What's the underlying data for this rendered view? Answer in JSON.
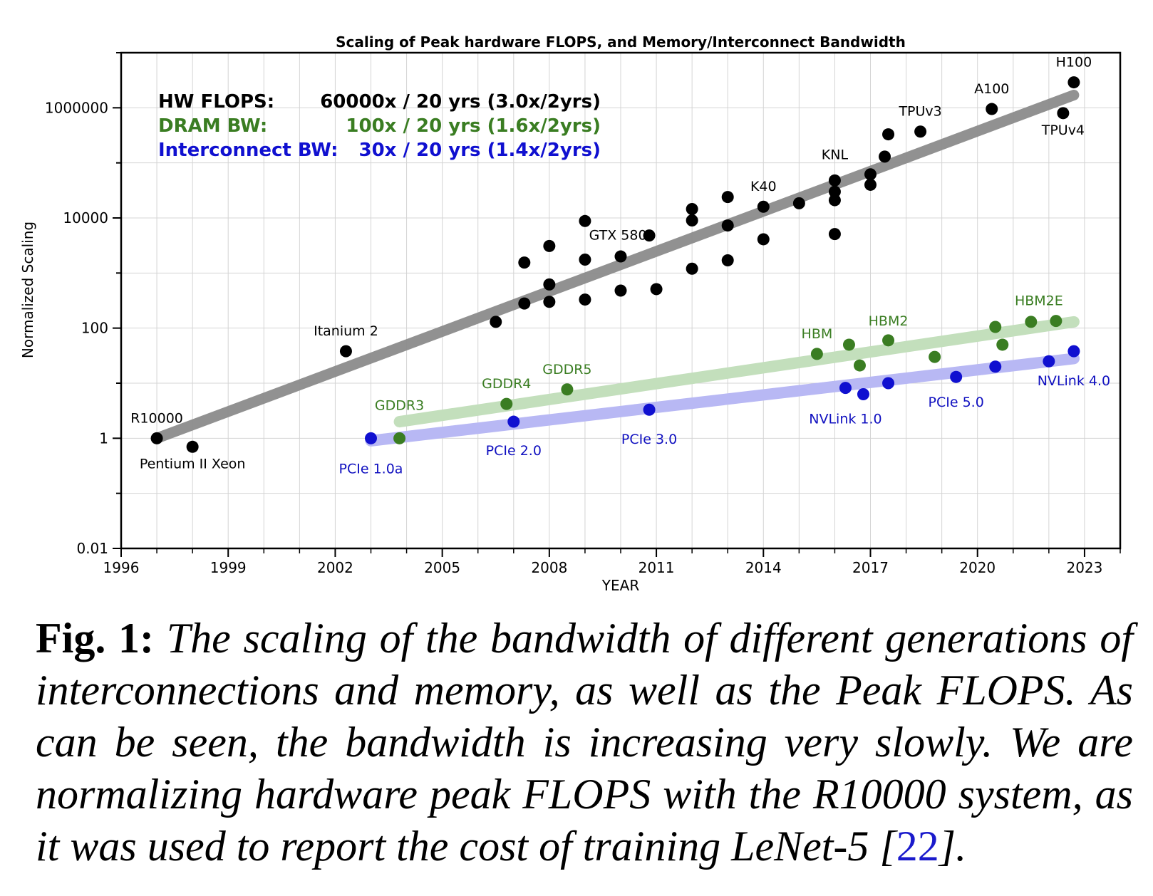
{
  "chart_data": {
    "type": "scatter",
    "title": "Scaling of Peak hardware FLOPS, and Memory/Interconnect Bandwidth",
    "xlabel": "YEAR",
    "ylabel": "Normalized Scaling",
    "yscale": "log",
    "xlim": [
      1996,
      2024
    ],
    "ylim": [
      0.01,
      10000000
    ],
    "xticks": [
      1996,
      1999,
      2002,
      2005,
      2008,
      2011,
      2014,
      2017,
      2020,
      2023
    ],
    "xtick_labels": [
      "1996",
      "1999",
      "2002",
      "2005",
      "2008",
      "2011",
      "2014",
      "2017",
      "2020",
      "2023"
    ],
    "yticks": [
      0.01,
      1,
      100,
      10000,
      1000000
    ],
    "ytick_labels": [
      "0.01",
      "1",
      "100",
      "10000",
      "1000000"
    ],
    "grid": true,
    "legend": {
      "position": "top-left",
      "entries": [
        {
          "name": "HW FLOPS:",
          "rate": "60000x / 20 yrs (3.0x/2yrs)",
          "color": "#000000"
        },
        {
          "name": "DRAM BW:",
          "rate": "100x / 20 yrs (1.6x/2yrs)",
          "color": "#3a7d22"
        },
        {
          "name": "Interconnect BW:",
          "rate": "30x / 20 yrs (1.4x/2yrs)",
          "color": "#1010d0"
        }
      ]
    },
    "series": [
      {
        "name": "HW FLOPS",
        "color": "#000000",
        "trend_color": "#8c8c8c",
        "trend": {
          "x": [
            1997,
            2022.7
          ],
          "y": [
            1.0,
            1700000
          ]
        },
        "points": [
          {
            "x": 1997.0,
            "y": 1.0,
            "label": "R10000"
          },
          {
            "x": 1998.0,
            "y": 0.7,
            "label": "Pentium II Xeon"
          },
          {
            "x": 2002.3,
            "y": 38,
            "label": "Itanium 2"
          },
          {
            "x": 2006.5,
            "y": 130,
            "label": ""
          },
          {
            "x": 2007.3,
            "y": 1550,
            "label": ""
          },
          {
            "x": 2007.3,
            "y": 280,
            "label": ""
          },
          {
            "x": 2008.0,
            "y": 3100,
            "label": ""
          },
          {
            "x": 2008.0,
            "y": 620,
            "label": ""
          },
          {
            "x": 2008.0,
            "y": 300,
            "label": ""
          },
          {
            "x": 2009.0,
            "y": 8800,
            "label": ""
          },
          {
            "x": 2009.0,
            "y": 1750,
            "label": ""
          },
          {
            "x": 2009.0,
            "y": 330,
            "label": ""
          },
          {
            "x": 2010.0,
            "y": 2000,
            "label": ""
          },
          {
            "x": 2010.0,
            "y": 480,
            "label": ""
          },
          {
            "x": 2010.8,
            "y": 4800,
            "label": "GTX 580"
          },
          {
            "x": 2011.0,
            "y": 510,
            "label": ""
          },
          {
            "x": 2012.0,
            "y": 14500,
            "label": ""
          },
          {
            "x": 2012.0,
            "y": 9000,
            "label": ""
          },
          {
            "x": 2012.0,
            "y": 1200,
            "label": ""
          },
          {
            "x": 2013.0,
            "y": 24000,
            "label": ""
          },
          {
            "x": 2013.0,
            "y": 7300,
            "label": ""
          },
          {
            "x": 2013.0,
            "y": 1700,
            "label": ""
          },
          {
            "x": 2014.0,
            "y": 16000,
            "label": "K40"
          },
          {
            "x": 2014.0,
            "y": 4100,
            "label": ""
          },
          {
            "x": 2015.0,
            "y": 18500,
            "label": ""
          },
          {
            "x": 2016.0,
            "y": 48000,
            "label": "KNL"
          },
          {
            "x": 2016.0,
            "y": 30000,
            "label": ""
          },
          {
            "x": 2016.0,
            "y": 21000,
            "label": ""
          },
          {
            "x": 2016.0,
            "y": 5100,
            "label": ""
          },
          {
            "x": 2017.0,
            "y": 62000,
            "label": ""
          },
          {
            "x": 2017.0,
            "y": 40000,
            "label": ""
          },
          {
            "x": 2017.4,
            "y": 130000,
            "label": ""
          },
          {
            "x": 2017.5,
            "y": 330000,
            "label": ""
          },
          {
            "x": 2018.4,
            "y": 370000,
            "label": "TPUv3"
          },
          {
            "x": 2020.4,
            "y": 950000,
            "label": "A100"
          },
          {
            "x": 2022.4,
            "y": 800000,
            "label": "TPUv4"
          },
          {
            "x": 2022.7,
            "y": 2900000,
            "label": "H100"
          }
        ]
      },
      {
        "name": "DRAM BW",
        "color": "#3a7d22",
        "trend_color": "#c3dfbc",
        "trend": {
          "x": [
            2003.8,
            2022.7
          ],
          "y": [
            2.0,
            130
          ]
        },
        "points": [
          {
            "x": 2003.8,
            "y": 1.0,
            "label": "GDDR3"
          },
          {
            "x": 2006.8,
            "y": 4.2,
            "label": "GDDR4"
          },
          {
            "x": 2008.5,
            "y": 7.7,
            "label": "GDDR5"
          },
          {
            "x": 2015.5,
            "y": 34,
            "label": "HBM"
          },
          {
            "x": 2016.4,
            "y": 50,
            "label": ""
          },
          {
            "x": 2016.7,
            "y": 21,
            "label": ""
          },
          {
            "x": 2017.5,
            "y": 60,
            "label": "HBM2"
          },
          {
            "x": 2018.8,
            "y": 30,
            "label": ""
          },
          {
            "x": 2020.5,
            "y": 105,
            "label": ""
          },
          {
            "x": 2020.7,
            "y": 50,
            "label": ""
          },
          {
            "x": 2021.5,
            "y": 130,
            "label": ""
          },
          {
            "x": 2022.2,
            "y": 135,
            "label": "HBM2E"
          }
        ]
      },
      {
        "name": "Interconnect BW",
        "color": "#1010d0",
        "trend_color": "#b8b8f4",
        "trend": {
          "x": [
            2003.0,
            2022.7
          ],
          "y": [
            0.9,
            28
          ]
        },
        "points": [
          {
            "x": 2003.0,
            "y": 1.0,
            "label": "PCIe 1.0a"
          },
          {
            "x": 2007.0,
            "y": 2.0,
            "label": "PCIe 2.0"
          },
          {
            "x": 2010.8,
            "y": 3.3,
            "label": "PCIe 3.0"
          },
          {
            "x": 2016.3,
            "y": 8.2,
            "label": "NVLink 1.0"
          },
          {
            "x": 2016.8,
            "y": 6.3,
            "label": ""
          },
          {
            "x": 2017.5,
            "y": 10.0,
            "label": ""
          },
          {
            "x": 2019.4,
            "y": 13.0,
            "label": "PCIe 5.0"
          },
          {
            "x": 2020.5,
            "y": 20.0,
            "label": ""
          },
          {
            "x": 2022.0,
            "y": 25.0,
            "label": ""
          },
          {
            "x": 2022.7,
            "y": 38.0,
            "label": "NVLink 4.0"
          }
        ]
      }
    ]
  },
  "caption": {
    "fig_label": "Fig. 1:",
    "text": "The scaling of the bandwidth of different generations of interconnections and memory, as well as the Peak FLOPS. As can be seen, the bandwidth is increasing very slowly. We are normalizing hardware peak FLOPS with the R10000 system, as it was used to report the cost of training LeNet-5 [",
    "ref": "22",
    "end": "]."
  }
}
